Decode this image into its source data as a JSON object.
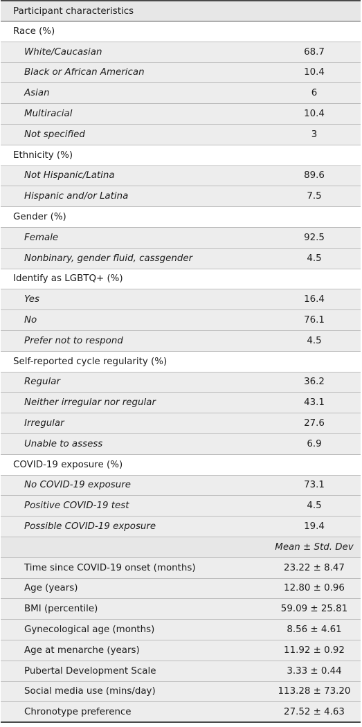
{
  "table": {
    "header": "Participant characteristics",
    "sections": [
      {
        "title": "Race (%)",
        "rows": [
          {
            "label": "White/Caucasian",
            "value": "68.7"
          },
          {
            "label": "Black or African American",
            "value": "10.4"
          },
          {
            "label": "Asian",
            "value": "6"
          },
          {
            "label": "Multiracial",
            "value": "10.4"
          },
          {
            "label": "Not specified",
            "value": "3"
          }
        ]
      },
      {
        "title": "Ethnicity (%)",
        "rows": [
          {
            "label": "Not Hispanic/Latina",
            "value": "89.6"
          },
          {
            "label": "Hispanic and/or Latina",
            "value": "7.5"
          }
        ]
      },
      {
        "title": "Gender (%)",
        "rows": [
          {
            "label": "Female",
            "value": "92.5"
          },
          {
            "label": "Nonbinary, gender fluid, cassgender",
            "value": "4.5"
          }
        ]
      },
      {
        "title": "Identify as LGBTQ+ (%)",
        "rows": [
          {
            "label": "Yes",
            "value": "16.4"
          },
          {
            "label": "No",
            "value": "76.1"
          },
          {
            "label": "Prefer not to respond",
            "value": "4.5"
          }
        ]
      },
      {
        "title": "Self-reported cycle regularity (%)",
        "rows": [
          {
            "label": "Regular",
            "value": "36.2"
          },
          {
            "label": "Neither irregular nor regular",
            "value": "43.1"
          },
          {
            "label": "Irregular",
            "value": "27.6"
          },
          {
            "label": "Unable to assess",
            "value": "6.9"
          }
        ]
      },
      {
        "title": "COVID-19 exposure (%)",
        "rows": [
          {
            "label": "No COVID-19 exposure",
            "value": "73.1"
          },
          {
            "label": "Positive COVID-19 test",
            "value": "4.5"
          },
          {
            "label": "Possible COVID-19 exposure",
            "value": "19.4"
          }
        ]
      }
    ],
    "stats_header": "Mean ± Std. Dev",
    "stats": [
      {
        "label": "Time since COVID-19 onset (months)",
        "value": "23.22 ± 8.47"
      },
      {
        "label": "Age (years)",
        "value": "12.80 ± 0.96"
      },
      {
        "label": "BMI (percentile)",
        "value": "59.09 ± 25.81"
      },
      {
        "label": "Gynecological age (months)",
        "value": "8.56 ± 4.61"
      },
      {
        "label": "Age at menarche (years)",
        "value": "11.92 ± 0.92"
      },
      {
        "label": "Pubertal Development Scale",
        "value": "3.33 ± 0.44"
      },
      {
        "label": "Social media use (mins/day)",
        "value": "113.28 ± 73.20"
      },
      {
        "label": "Chronotype preference",
        "value": "27.52 ± 4.63"
      }
    ]
  }
}
